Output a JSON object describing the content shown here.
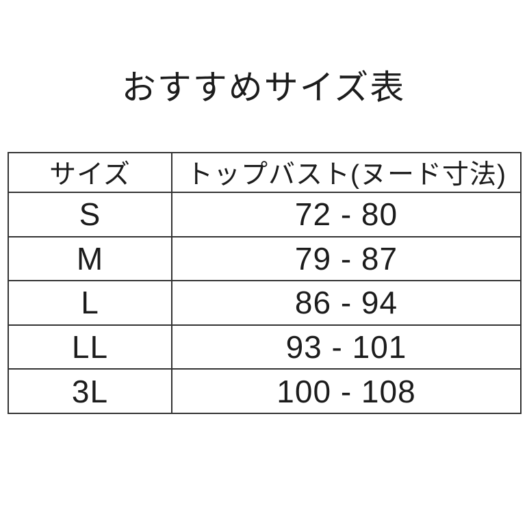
{
  "page": {
    "background_color": "#ffffff",
    "text_color": "#1c1c1c",
    "border_color": "#333333"
  },
  "chart_data": {
    "type": "table",
    "title": "おすすめサイズ表",
    "columns": [
      "サイズ",
      "トップバスト(ヌード寸法)"
    ],
    "rows": [
      {
        "size": "S",
        "bust": "72 - 80",
        "bust_min": 72,
        "bust_max": 80
      },
      {
        "size": "M",
        "bust": "79 - 87",
        "bust_min": 79,
        "bust_max": 87
      },
      {
        "size": "L",
        "bust": "86 - 94",
        "bust_min": 86,
        "bust_max": 94
      },
      {
        "size": "LL",
        "bust": "93 - 101",
        "bust_min": 93,
        "bust_max": 101
      },
      {
        "size": "3L",
        "bust": "100 - 108",
        "bust_min": 100,
        "bust_max": 108
      }
    ],
    "layout": {
      "grid": true,
      "header_row": true,
      "legend_position": "none"
    }
  }
}
